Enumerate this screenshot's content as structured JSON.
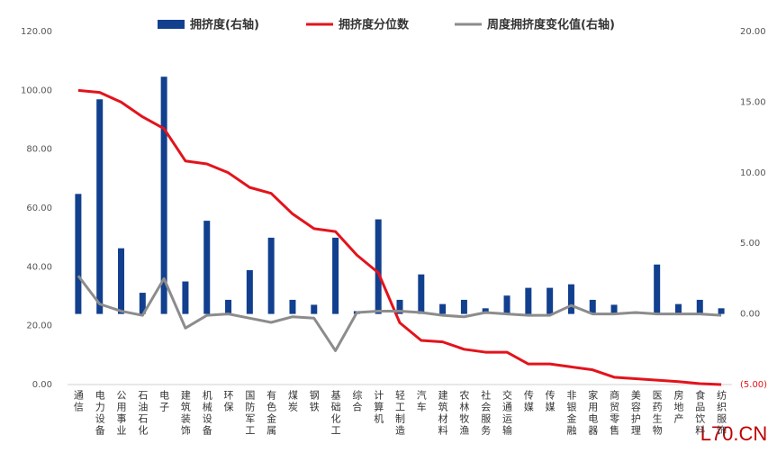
{
  "chart_data": {
    "type": "bar",
    "categories": [
      "通信",
      "电力设备",
      "公用事业",
      "石油石化",
      "电子",
      "建筑装饰",
      "机械设备",
      "环保",
      "国防军工",
      "有色金属",
      "煤炭",
      "钢铁",
      "基础化工",
      "综合",
      "计算机",
      "轻工制造",
      "汽车",
      "建筑材料",
      "农林牧渔",
      "社会服务",
      "交通运输",
      "传媒",
      "传媒",
      "非银金融",
      "家用电器",
      "商贸零售",
      "美容护理",
      "医药生物",
      "房地产",
      "食品饮料",
      "纺织服饰"
    ],
    "series": [
      {
        "name": "拥挤度(右轴)",
        "type": "bar",
        "axis": "y2",
        "color": "#12408f",
        "values": [
          8.5,
          15.2,
          4.65,
          1.5,
          16.8,
          2.3,
          6.6,
          1.0,
          3.1,
          5.4,
          1.0,
          0.65,
          5.4,
          0.2,
          6.7,
          1.0,
          2.8,
          0.7,
          1.0,
          0.4,
          1.3,
          1.85,
          1.85,
          2.1,
          1.0,
          0.65,
          0.15,
          3.5,
          0.7,
          1.0,
          0.4
        ]
      },
      {
        "name": "拥挤度分位数",
        "type": "line",
        "axis": "y",
        "color": "#e3131c",
        "values": [
          100,
          99.3,
          96,
          91,
          87,
          76,
          75,
          72,
          67,
          65,
          58,
          53,
          52,
          44,
          38,
          21,
          15,
          14.5,
          12,
          11,
          11,
          7,
          7,
          6,
          5,
          2.5,
          2,
          1.5,
          1,
          0.3,
          0
        ]
      },
      {
        "name": "周度拥挤度变化值(右轴)",
        "type": "line",
        "axis": "y2",
        "color": "#8c8c8c",
        "values": [
          2.7,
          0.7,
          0.2,
          -0.1,
          2.5,
          -1.0,
          -0.1,
          0,
          -0.3,
          -0.6,
          -0.2,
          -0.3,
          -2.6,
          0.1,
          0.2,
          0.2,
          0.1,
          -0.1,
          -0.2,
          0.1,
          0,
          -0.1,
          -0.1,
          0.6,
          0,
          0,
          0.1,
          0,
          0,
          0,
          -0.1
        ]
      }
    ],
    "ylim": [
      0,
      120
    ],
    "yticks": [
      {
        "value": 0,
        "label": "0.00"
      },
      {
        "value": 20,
        "label": "20.00"
      },
      {
        "value": 40,
        "label": "40.00"
      },
      {
        "value": 60,
        "label": "60.00"
      },
      {
        "value": 80,
        "label": "80.00"
      },
      {
        "value": 100,
        "label": "100.00"
      },
      {
        "value": 120,
        "label": "120.00"
      }
    ],
    "y2lim": [
      -5,
      20
    ],
    "y2ticks": [
      {
        "value": -5,
        "label": "(5.00)"
      },
      {
        "value": 0,
        "label": "0.00"
      },
      {
        "value": 5,
        "label": "5.00"
      },
      {
        "value": 10,
        "label": "10.00"
      },
      {
        "value": 15,
        "label": "15.00"
      },
      {
        "value": 20,
        "label": "20.00"
      }
    ],
    "watermark": "L70.CN"
  }
}
